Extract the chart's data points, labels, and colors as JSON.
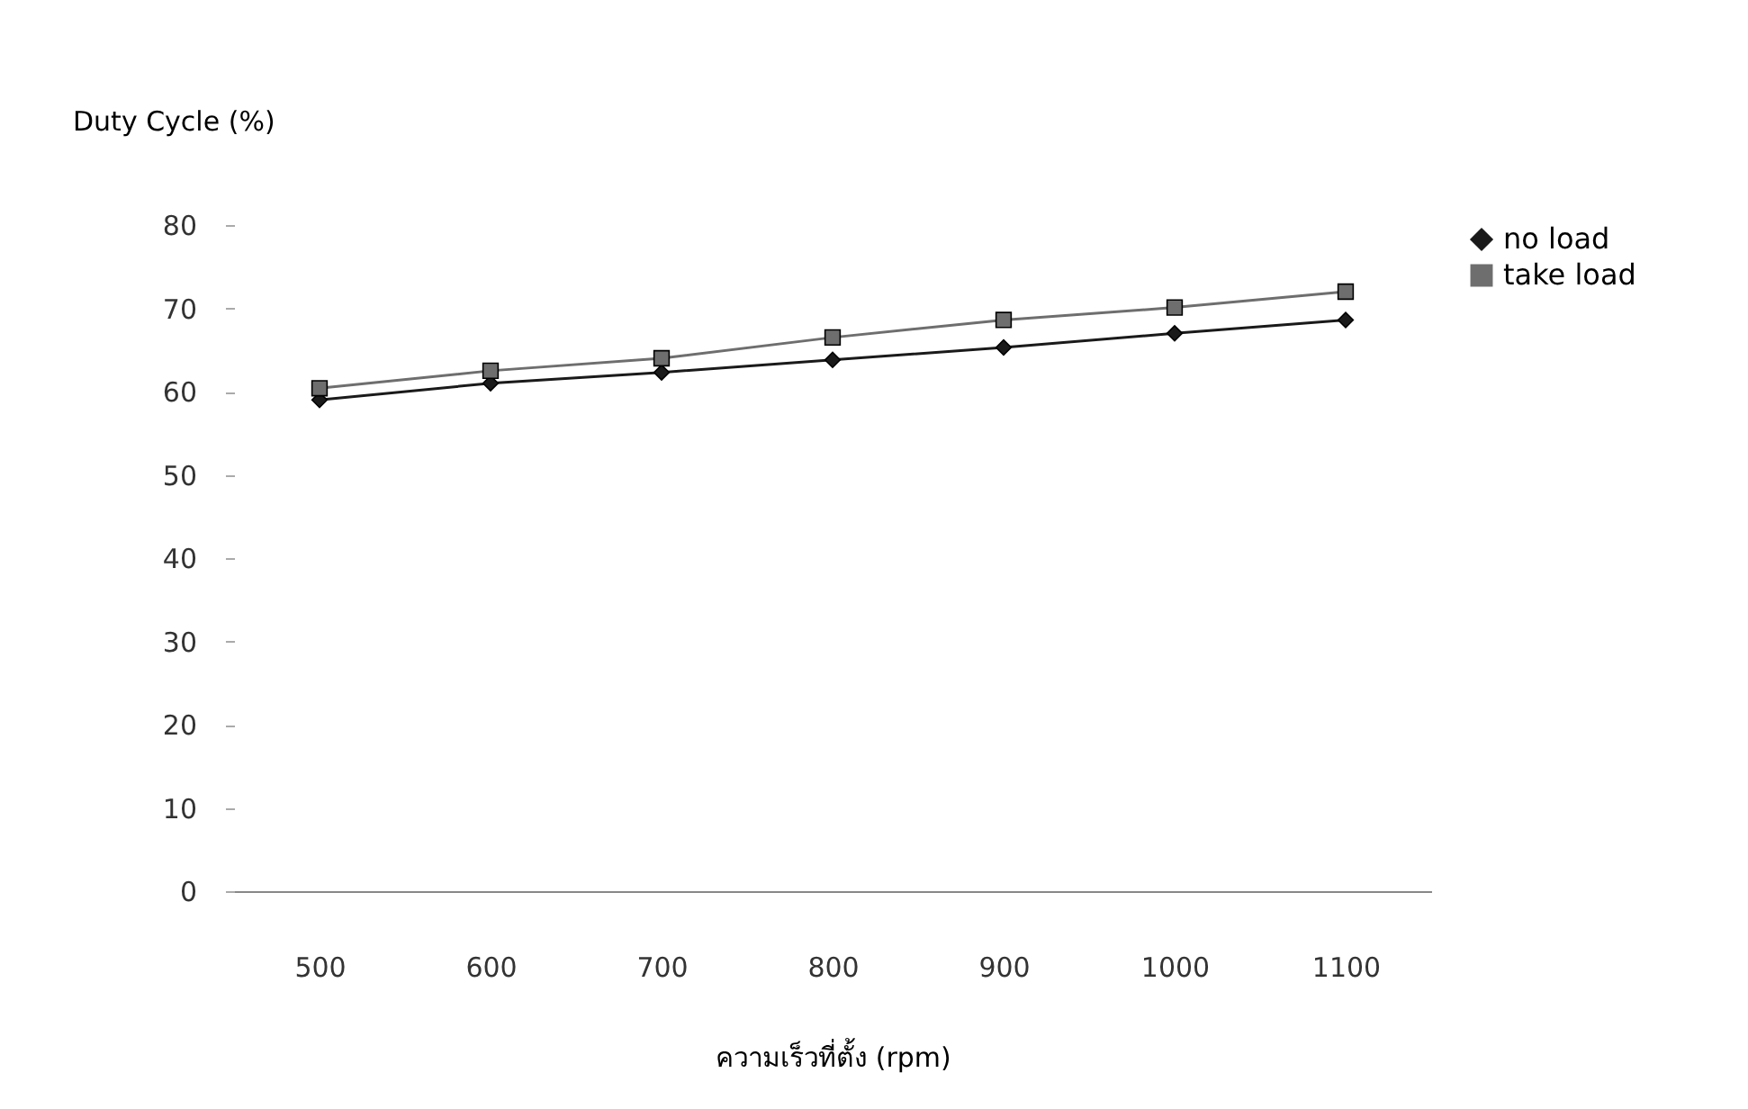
{
  "chart_data": {
    "type": "line",
    "xlabel": "ความเร็วที่ตั้ง (rpm)",
    "ylabel": "Duty Cycle (%)",
    "categories": [
      "500",
      "600",
      "700",
      "800",
      "900",
      "1000",
      "1100"
    ],
    "series": [
      {
        "name": "no load",
        "color": "#1a1a1a",
        "marker": "diamond",
        "values": [
          59,
          61,
          62.3,
          63.8,
          65.3,
          67,
          68.6
        ]
      },
      {
        "name": "take load",
        "color": "#6e6e6e",
        "marker": "square",
        "values": [
          60.4,
          62.5,
          64,
          66.5,
          68.6,
          70.1,
          72
        ]
      }
    ],
    "ylim": [
      0,
      80
    ],
    "yticks": [
      0,
      10,
      20,
      30,
      40,
      50,
      60,
      70,
      80
    ],
    "grid": false,
    "legend": "right",
    "line_style": "solid"
  }
}
